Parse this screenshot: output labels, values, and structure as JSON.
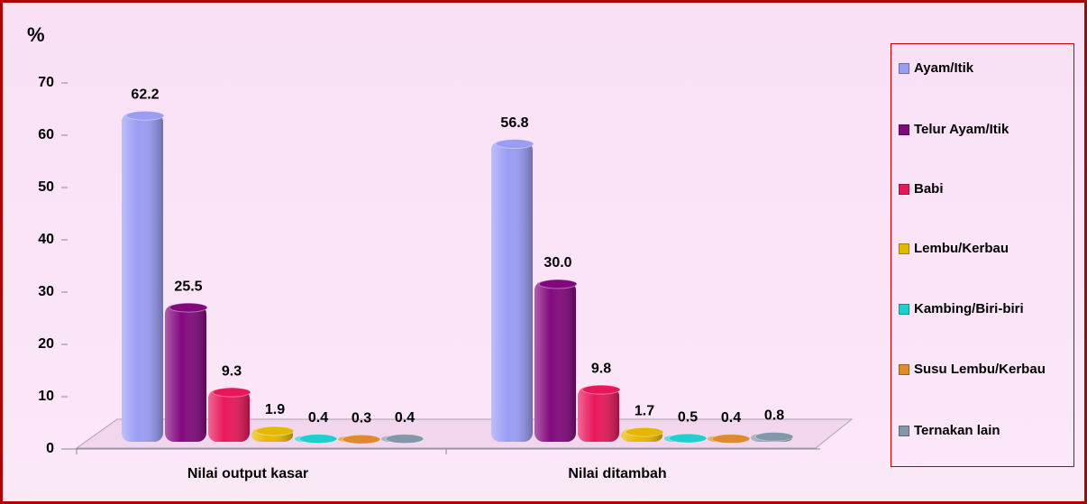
{
  "chart_data": {
    "type": "bar3d",
    "y_label": "%",
    "categories": [
      "Nilai output kasar",
      "Nilai ditambah"
    ],
    "ylim": [
      0,
      70
    ],
    "yticks": [
      0,
      10,
      20,
      30,
      40,
      50,
      60,
      70
    ],
    "legend": "right",
    "series": [
      {
        "name": "Ayam/Itik",
        "color": "#9a9cf5",
        "values": [
          62.2,
          56.8
        ],
        "value_labels": [
          "62.2",
          "56.8"
        ]
      },
      {
        "name": "Telur Ayam/Itik",
        "color": "#82087e",
        "values": [
          25.5,
          30.0
        ],
        "value_labels": [
          "25.5",
          "30.0"
        ]
      },
      {
        "name": "Babi",
        "color": "#e8175a",
        "values": [
          9.3,
          9.8
        ],
        "value_labels": [
          "9.3",
          "9.8"
        ]
      },
      {
        "name": "Lembu/Kerbau",
        "color": "#e5b800",
        "values": [
          1.9,
          1.7
        ],
        "value_labels": [
          "1.9",
          "1.7"
        ]
      },
      {
        "name": "Kambing/Biri-biri",
        "color": "#1fcfcf",
        "values": [
          0.4,
          0.5
        ],
        "value_labels": [
          "0.4",
          "0.5"
        ]
      },
      {
        "name": "Susu Lembu/Kerbau",
        "color": "#e08a2e",
        "values": [
          0.3,
          0.4
        ],
        "value_labels": [
          "0.3",
          "0.4"
        ]
      },
      {
        "name": "Ternakan lain",
        "color": "#8397ab",
        "values": [
          0.4,
          0.8
        ],
        "value_labels": [
          "0.4",
          "0.8"
        ]
      }
    ]
  }
}
